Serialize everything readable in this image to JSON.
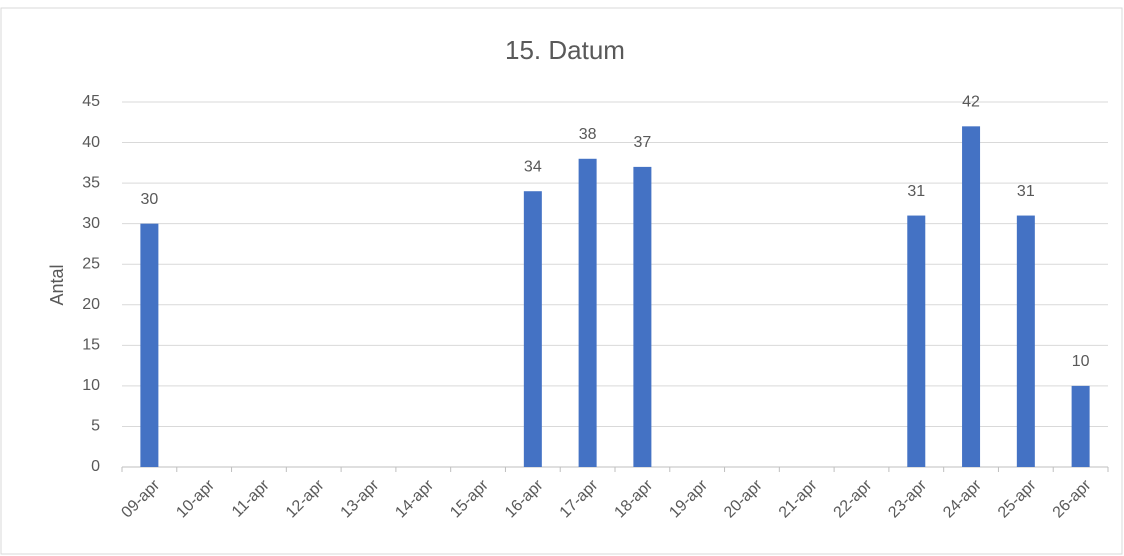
{
  "chart_data": {
    "type": "bar",
    "title": "15. Datum",
    "y_label": "Antal",
    "categories": [
      "09-apr",
      "10-apr",
      "11-apr",
      "12-apr",
      "13-apr",
      "14-apr",
      "15-apr",
      "16-apr",
      "17-apr",
      "18-apr",
      "19-apr",
      "20-apr",
      "21-apr",
      "22-apr",
      "23-apr",
      "24-apr",
      "25-apr",
      "26-apr"
    ],
    "values": [
      30,
      null,
      null,
      null,
      null,
      null,
      null,
      34,
      38,
      37,
      null,
      null,
      null,
      null,
      31,
      42,
      31,
      10
    ],
    "color": "#4472c4",
    "ylim": [
      0,
      45
    ],
    "yticks": [
      0,
      5,
      10,
      15,
      20,
      25,
      30,
      35,
      40,
      45
    ],
    "grid": true
  }
}
